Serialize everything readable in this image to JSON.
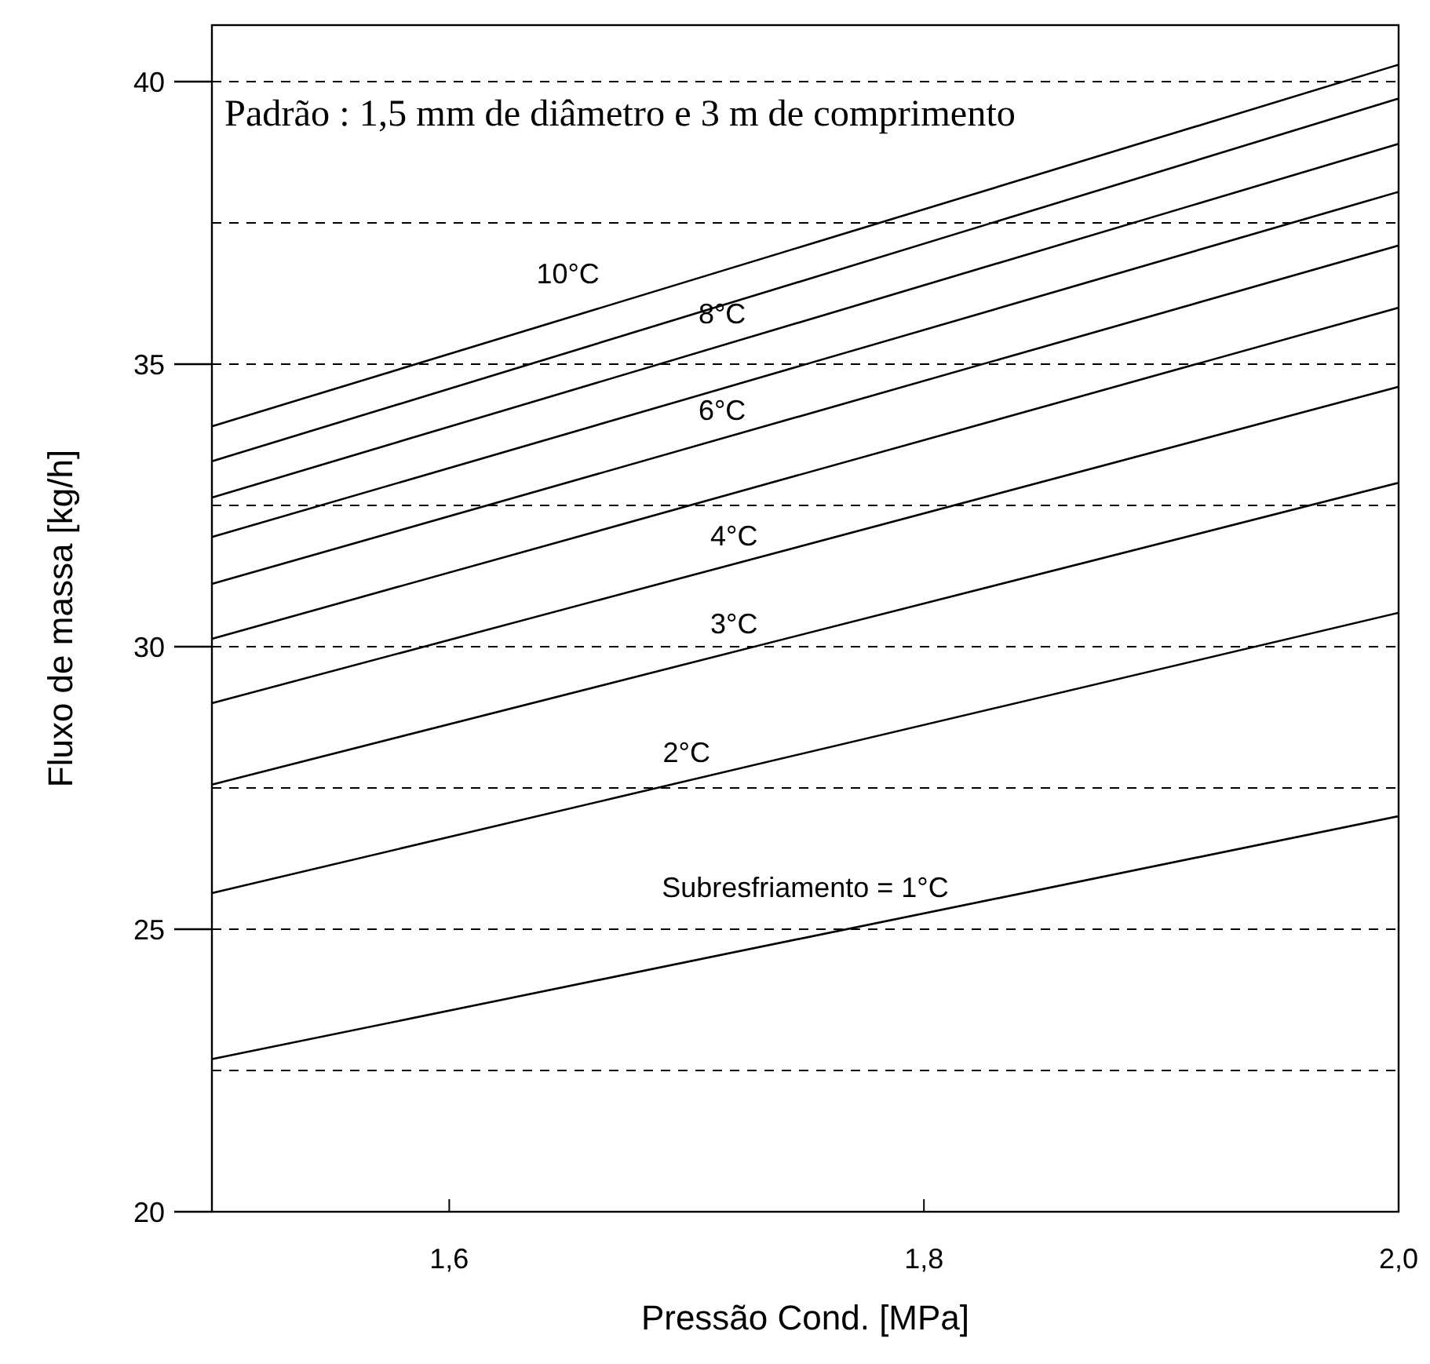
{
  "chart_data": {
    "type": "line",
    "xlabel": "Pressão Cond. [MPa]",
    "ylabel": "Fluxo de massa [kg/h]",
    "x": [
      1.5,
      2.0
    ],
    "series": [
      {
        "name": "10°C",
        "color": "#000000",
        "values": [
          33.9,
          40.3
        ]
      },
      {
        "color": "#000000",
        "values": [
          33.28,
          39.7
        ]
      },
      {
        "name": "8°C",
        "color": "#000000",
        "values": [
          32.64,
          38.9
        ]
      },
      {
        "color": "#000000",
        "values": [
          31.94,
          38.05
        ]
      },
      {
        "name": "6°C",
        "color": "#000000",
        "values": [
          31.11,
          37.1
        ]
      },
      {
        "color": "#000000",
        "values": [
          30.14,
          36.0
        ]
      },
      {
        "name": "4°C",
        "color": "#000000",
        "values": [
          29.0,
          34.6
        ]
      },
      {
        "name": "3°C",
        "color": "#000000",
        "values": [
          27.56,
          32.9
        ]
      },
      {
        "name": "2°C",
        "color": "#000000",
        "values": [
          25.64,
          30.6
        ]
      },
      {
        "name": "Subresfriamento = 1°C",
        "color": "#000000",
        "values": [
          22.7,
          27.0
        ]
      }
    ],
    "xlim": [
      1.5,
      2.0
    ],
    "xticks": [
      {
        "value": 1.6,
        "label": "1,6"
      },
      {
        "value": 1.8,
        "label": "1,8"
      },
      {
        "value": 2.0,
        "label": "2,0"
      }
    ],
    "ylim": [
      20,
      41
    ],
    "yticks": [
      20,
      {
        "value": 22.5,
        "label": null
      },
      25,
      {
        "value": 27.5,
        "label": null
      },
      30,
      {
        "value": 32.5,
        "label": null
      },
      35,
      {
        "value": 37.5,
        "label": null
      },
      40
    ],
    "grid": "y",
    "marker": "none",
    "line_style": "solid",
    "annotations": [
      "Padrão : 1,5 mm de diâmetro e 3 m de comprimento"
    ]
  }
}
